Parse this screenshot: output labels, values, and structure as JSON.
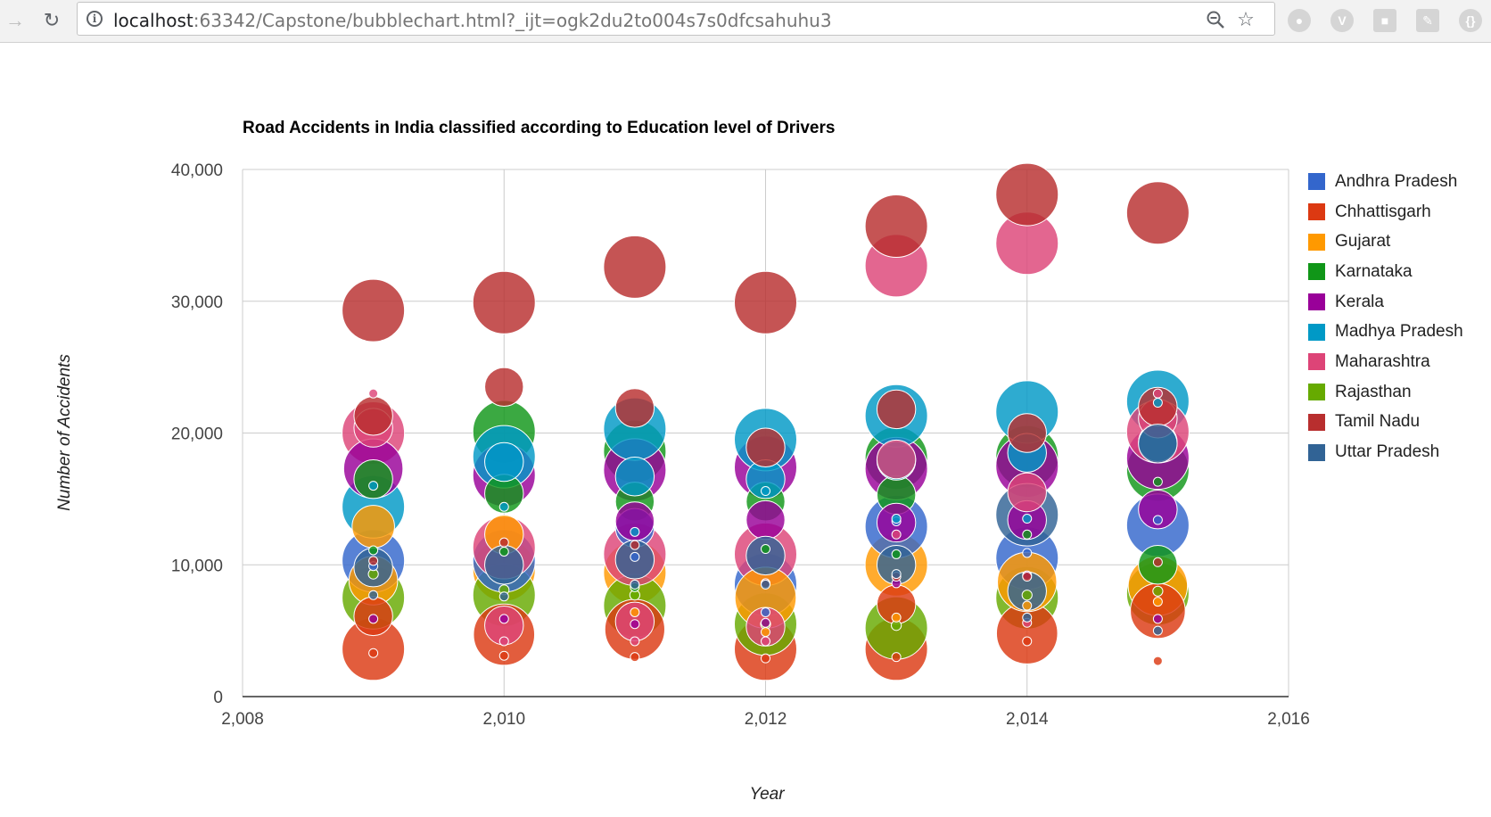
{
  "browser": {
    "url_host": "localhost",
    "url_rest": ":63342/Capstone/bubblechart.html?_ijt=ogk2du2to004s7s0dfcsahuhu3",
    "back_icon": "arrow-left",
    "reload_icon": "reload",
    "info_icon": "info",
    "zoom_icon": "magnifier-minus",
    "star_icon": "star",
    "extension_icons": [
      "mask-extension",
      "v-extension",
      "lock-extension",
      "pdf-extension",
      "code-extension"
    ]
  },
  "chart_data": {
    "type": "scatter",
    "subtype": "bubble",
    "title": "Road Accidents in India classified according to Education level of Drivers",
    "xlabel": "Year",
    "ylabel": "Number of Accidents",
    "xlim": [
      2008,
      2016
    ],
    "ylim": [
      0,
      40000
    ],
    "xticks": [
      "2,008",
      "2,010",
      "2,012",
      "2,014",
      "2,016"
    ],
    "yticks": [
      "0",
      "10,000",
      "20,000",
      "30,000",
      "40,000"
    ],
    "grid": true,
    "legend_position": "right",
    "colors": {
      "Andhra Pradesh": "#3366cc",
      "Chhattisgarh": "#dc3912",
      "Gujarat": "#ff9900",
      "Karnataka": "#109618",
      "Kerala": "#990099",
      "Madhya Pradesh": "#0099c6",
      "Maharashtra": "#dd4477",
      "Rajasthan": "#66aa00",
      "Tamil Nadu": "#b82e2e",
      "Uttar Pradesh": "#316395"
    },
    "series": [
      {
        "name": "Chhattisgarh",
        "points": [
          [
            2009,
            3600,
            1.0
          ],
          [
            2009,
            6100,
            0.62
          ],
          [
            2009,
            3300,
            0.12
          ],
          [
            2010,
            4700,
            0.98
          ],
          [
            2010,
            3100,
            0.12
          ],
          [
            2011,
            5100,
            0.96
          ],
          [
            2011,
            3000,
            0.12
          ],
          [
            2012,
            3600,
            1.0
          ],
          [
            2012,
            2900,
            0.12
          ],
          [
            2013,
            3600,
            1.0
          ],
          [
            2013,
            7000,
            0.62
          ],
          [
            2013,
            3000,
            0.12
          ],
          [
            2014,
            4800,
            0.98
          ],
          [
            2014,
            4200,
            0.12
          ],
          [
            2015,
            6500,
            0.88
          ],
          [
            2015,
            2700,
            0.12
          ]
        ]
      },
      {
        "name": "Gujarat",
        "points": [
          [
            2009,
            12900,
            0.68
          ],
          [
            2009,
            8800,
            0.78
          ],
          [
            2010,
            12300,
            0.62
          ],
          [
            2010,
            9600,
            1.0
          ],
          [
            2011,
            9400,
            1.0
          ],
          [
            2011,
            6400,
            0.14
          ],
          [
            2012,
            7500,
            0.98
          ],
          [
            2012,
            4900,
            0.14
          ],
          [
            2013,
            10000,
            1.0
          ],
          [
            2013,
            6000,
            0.14
          ],
          [
            2014,
            8700,
            0.95
          ],
          [
            2014,
            6900,
            0.14
          ],
          [
            2015,
            8400,
            0.95
          ],
          [
            2015,
            7200,
            0.14
          ]
        ]
      },
      {
        "name": "Rajasthan",
        "points": [
          [
            2009,
            7500,
            1.0
          ],
          [
            2009,
            9300,
            0.16
          ],
          [
            2010,
            7700,
            1.0
          ],
          [
            2010,
            8100,
            0.16
          ],
          [
            2011,
            6900,
            1.0
          ],
          [
            2011,
            7700,
            0.16
          ],
          [
            2012,
            5500,
            1.0
          ],
          [
            2012,
            5500,
            0.16
          ],
          [
            2013,
            5200,
            1.0
          ],
          [
            2013,
            5400,
            0.16
          ],
          [
            2014,
            7500,
            1.0
          ],
          [
            2014,
            7700,
            0.16
          ],
          [
            2015,
            7800,
            1.0
          ],
          [
            2015,
            8000,
            0.16
          ]
        ]
      },
      {
        "name": "Karnataka",
        "points": [
          [
            2009,
            16500,
            0.62
          ],
          [
            2009,
            11100,
            0.14
          ],
          [
            2010,
            20100,
            1.0
          ],
          [
            2010,
            15400,
            0.62
          ],
          [
            2010,
            11000,
            0.14
          ],
          [
            2011,
            18600,
            1.0
          ],
          [
            2011,
            14800,
            0.62
          ],
          [
            2011,
            8300,
            0.14
          ],
          [
            2012,
            14800,
            0.62
          ],
          [
            2012,
            11200,
            0.14
          ],
          [
            2013,
            18100,
            1.0
          ],
          [
            2013,
            15300,
            0.62
          ],
          [
            2013,
            10800,
            0.14
          ],
          [
            2014,
            18200,
            1.0
          ],
          [
            2014,
            12300,
            0.14
          ],
          [
            2015,
            17200,
            1.0
          ],
          [
            2015,
            10000,
            0.62
          ],
          [
            2015,
            16300,
            0.14
          ]
        ]
      },
      {
        "name": "Andhra Pradesh",
        "points": [
          [
            2009,
            10300,
            1.0
          ],
          [
            2009,
            9900,
            0.14
          ],
          [
            2010,
            10300,
            1.0
          ],
          [
            2011,
            12800,
            0.62
          ],
          [
            2011,
            10600,
            0.14
          ],
          [
            2012,
            8500,
            1.0
          ],
          [
            2012,
            6400,
            0.14
          ],
          [
            2013,
            12900,
            1.0
          ],
          [
            2013,
            13300,
            0.14
          ],
          [
            2014,
            10500,
            1.0
          ],
          [
            2014,
            10900,
            0.14
          ],
          [
            2015,
            13000,
            1.0
          ],
          [
            2015,
            13400,
            0.14
          ]
        ]
      },
      {
        "name": "Kerala",
        "points": [
          [
            2009,
            17300,
            0.95
          ],
          [
            2009,
            5900,
            0.14
          ],
          [
            2010,
            16800,
            1.0
          ],
          [
            2010,
            5900,
            0.14
          ],
          [
            2011,
            17200,
            1.0
          ],
          [
            2011,
            13300,
            0.62
          ],
          [
            2011,
            5500,
            0.14
          ],
          [
            2012,
            17400,
            1.0
          ],
          [
            2012,
            13400,
            0.62
          ],
          [
            2012,
            5600,
            0.14
          ],
          [
            2013,
            17300,
            1.0
          ],
          [
            2013,
            13200,
            0.62
          ],
          [
            2013,
            8600,
            0.14
          ],
          [
            2014,
            17500,
            1.0
          ],
          [
            2014,
            13400,
            0.62
          ],
          [
            2014,
            9200,
            0.14
          ],
          [
            2015,
            18100,
            1.0
          ],
          [
            2015,
            14200,
            0.62
          ],
          [
            2015,
            5900,
            0.14
          ]
        ]
      },
      {
        "name": "Madhya Pradesh",
        "points": [
          [
            2009,
            14400,
            1.0
          ],
          [
            2009,
            16000,
            0.14
          ],
          [
            2010,
            18200,
            1.0
          ],
          [
            2010,
            17800,
            0.62
          ],
          [
            2010,
            14400,
            0.14
          ],
          [
            2011,
            20300,
            1.0
          ],
          [
            2011,
            16700,
            0.62
          ],
          [
            2011,
            12500,
            0.14
          ],
          [
            2012,
            19500,
            1.0
          ],
          [
            2012,
            16500,
            0.62
          ],
          [
            2012,
            15600,
            0.14
          ],
          [
            2013,
            21300,
            1.0
          ],
          [
            2013,
            17900,
            0.62
          ],
          [
            2013,
            13500,
            0.14
          ],
          [
            2014,
            21600,
            1.0
          ],
          [
            2014,
            18500,
            0.62
          ],
          [
            2014,
            13500,
            0.14
          ],
          [
            2015,
            22400,
            1.0
          ],
          [
            2015,
            19300,
            0.62
          ],
          [
            2015,
            22300,
            0.14
          ]
        ]
      },
      {
        "name": "Maharashtra",
        "points": [
          [
            2009,
            20000,
            1.0
          ],
          [
            2009,
            23000,
            0.14
          ],
          [
            2009,
            20400,
            0.62
          ],
          [
            2010,
            11300,
            1.0
          ],
          [
            2010,
            5400,
            0.62
          ],
          [
            2010,
            4200,
            0.14
          ],
          [
            2011,
            10800,
            1.0
          ],
          [
            2011,
            5700,
            0.62
          ],
          [
            2011,
            4200,
            0.14
          ],
          [
            2012,
            10800,
            1.0
          ],
          [
            2012,
            5300,
            0.62
          ],
          [
            2012,
            4200,
            0.14
          ],
          [
            2013,
            32700,
            1.0
          ],
          [
            2013,
            18000,
            0.62
          ],
          [
            2013,
            12300,
            0.14
          ],
          [
            2014,
            34400,
            1.0
          ],
          [
            2014,
            15500,
            0.62
          ],
          [
            2014,
            5600,
            0.14
          ],
          [
            2015,
            20100,
            1.0
          ],
          [
            2015,
            21100,
            0.62
          ],
          [
            2015,
            23000,
            0.14
          ]
        ]
      },
      {
        "name": "Tamil Nadu",
        "points": [
          [
            2009,
            29300,
            1.0
          ],
          [
            2009,
            21300,
            0.62
          ],
          [
            2009,
            10300,
            0.14
          ],
          [
            2010,
            29900,
            1.0
          ],
          [
            2010,
            23500,
            0.62
          ],
          [
            2010,
            11700,
            0.14
          ],
          [
            2011,
            32600,
            1.0
          ],
          [
            2011,
            21900,
            0.62
          ],
          [
            2011,
            11500,
            0.14
          ],
          [
            2012,
            29900,
            1.0
          ],
          [
            2012,
            18900,
            0.62
          ],
          [
            2012,
            8600,
            0.14
          ],
          [
            2013,
            35700,
            1.0
          ],
          [
            2013,
            21800,
            0.62
          ],
          [
            2013,
            9100,
            0.14
          ],
          [
            2014,
            38100,
            1.0
          ],
          [
            2014,
            20000,
            0.62
          ],
          [
            2014,
            9100,
            0.14
          ],
          [
            2015,
            36700,
            1.0
          ],
          [
            2015,
            22000,
            0.62
          ],
          [
            2015,
            10200,
            0.14
          ]
        ]
      },
      {
        "name": "Uttar Pradesh",
        "points": [
          [
            2009,
            9800,
            0.62
          ],
          [
            2009,
            7700,
            0.14
          ],
          [
            2010,
            10000,
            0.62
          ],
          [
            2010,
            7600,
            0.14
          ],
          [
            2011,
            10400,
            0.62
          ],
          [
            2011,
            8500,
            0.14
          ],
          [
            2012,
            10700,
            0.62
          ],
          [
            2012,
            8500,
            0.14
          ],
          [
            2013,
            10000,
            0.62
          ],
          [
            2013,
            9300,
            0.14
          ],
          [
            2014,
            13800,
            1.0
          ],
          [
            2014,
            8000,
            0.62
          ],
          [
            2014,
            6000,
            0.14
          ],
          [
            2015,
            19200,
            0.62
          ],
          [
            2015,
            5000,
            0.14
          ]
        ]
      }
    ]
  }
}
